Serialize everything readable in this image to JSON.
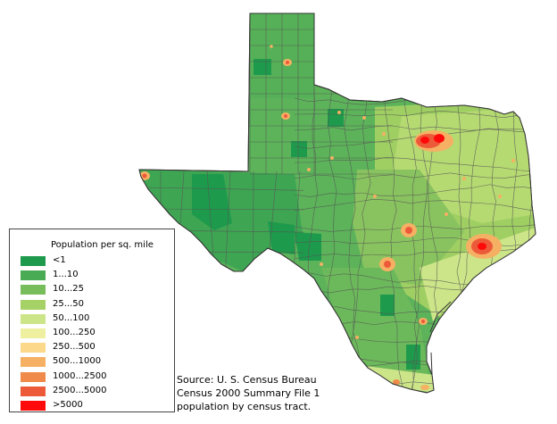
{
  "legend": {
    "title": "Population per sq. mile",
    "items": [
      {
        "label": "<1",
        "color": "#1e9a4c"
      },
      {
        "label": "1...10",
        "color": "#4aab55"
      },
      {
        "label": "10...25",
        "color": "#78bd5c"
      },
      {
        "label": "25...50",
        "color": "#a6d166"
      },
      {
        "label": "50...100",
        "color": "#cce588"
      },
      {
        "label": "100...250",
        "color": "#eef0a0"
      },
      {
        "label": "250...500",
        "color": "#fcd88a"
      },
      {
        "label": "500...1000",
        "color": "#f6b064"
      },
      {
        "label": "1000...2500",
        "color": "#f08a4a"
      },
      {
        "label": "2500...5000",
        "color": "#ec5a3a"
      },
      {
        "label": ">5000",
        "color": "#ff0a0a"
      }
    ]
  },
  "source": {
    "line1": "Source: U. S. Census Bureau",
    "line2": "Census 2000 Summary File 1",
    "line3": "population by census tract."
  },
  "map": {
    "border_color": "#555555",
    "cities": [
      {
        "name": "dallas-fort-worth-area"
      },
      {
        "name": "houston-area"
      },
      {
        "name": "austin-area"
      },
      {
        "name": "san-antonio-area"
      },
      {
        "name": "el-paso-area"
      },
      {
        "name": "lubbock-area"
      },
      {
        "name": "amarillo-area"
      },
      {
        "name": "corpus-christi-area"
      },
      {
        "name": "brownsville-area"
      }
    ]
  }
}
